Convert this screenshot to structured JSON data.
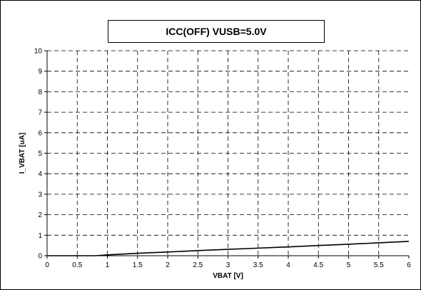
{
  "chart_data": {
    "type": "line",
    "title": "ICC(OFF)  VUSB=5.0V",
    "xlabel": "VBAT [V]",
    "ylabel": "I_VBAT [uA]",
    "xlim": [
      0,
      6
    ],
    "ylim": [
      0,
      10
    ],
    "x_ticks": [
      "0",
      "0.5",
      "1",
      "1.5",
      "2",
      "2.5",
      "3",
      "3.5",
      "4",
      "4.5",
      "5",
      "5.5",
      "6"
    ],
    "y_ticks": [
      "0",
      "1",
      "2",
      "3",
      "4",
      "5",
      "6",
      "7",
      "8",
      "9",
      "10"
    ],
    "grid": true,
    "grid_style": "dashed",
    "legend": false,
    "series": [
      {
        "color": "#000000",
        "x": [
          0,
          0.5,
          0.8,
          1.0,
          1.5,
          2.0,
          2.5,
          3.0,
          3.5,
          4.0,
          4.5,
          5.0,
          5.5,
          6.0
        ],
        "y": [
          0,
          0,
          0,
          0.04,
          0.12,
          0.18,
          0.25,
          0.31,
          0.37,
          0.43,
          0.5,
          0.56,
          0.63,
          0.7
        ]
      }
    ]
  }
}
